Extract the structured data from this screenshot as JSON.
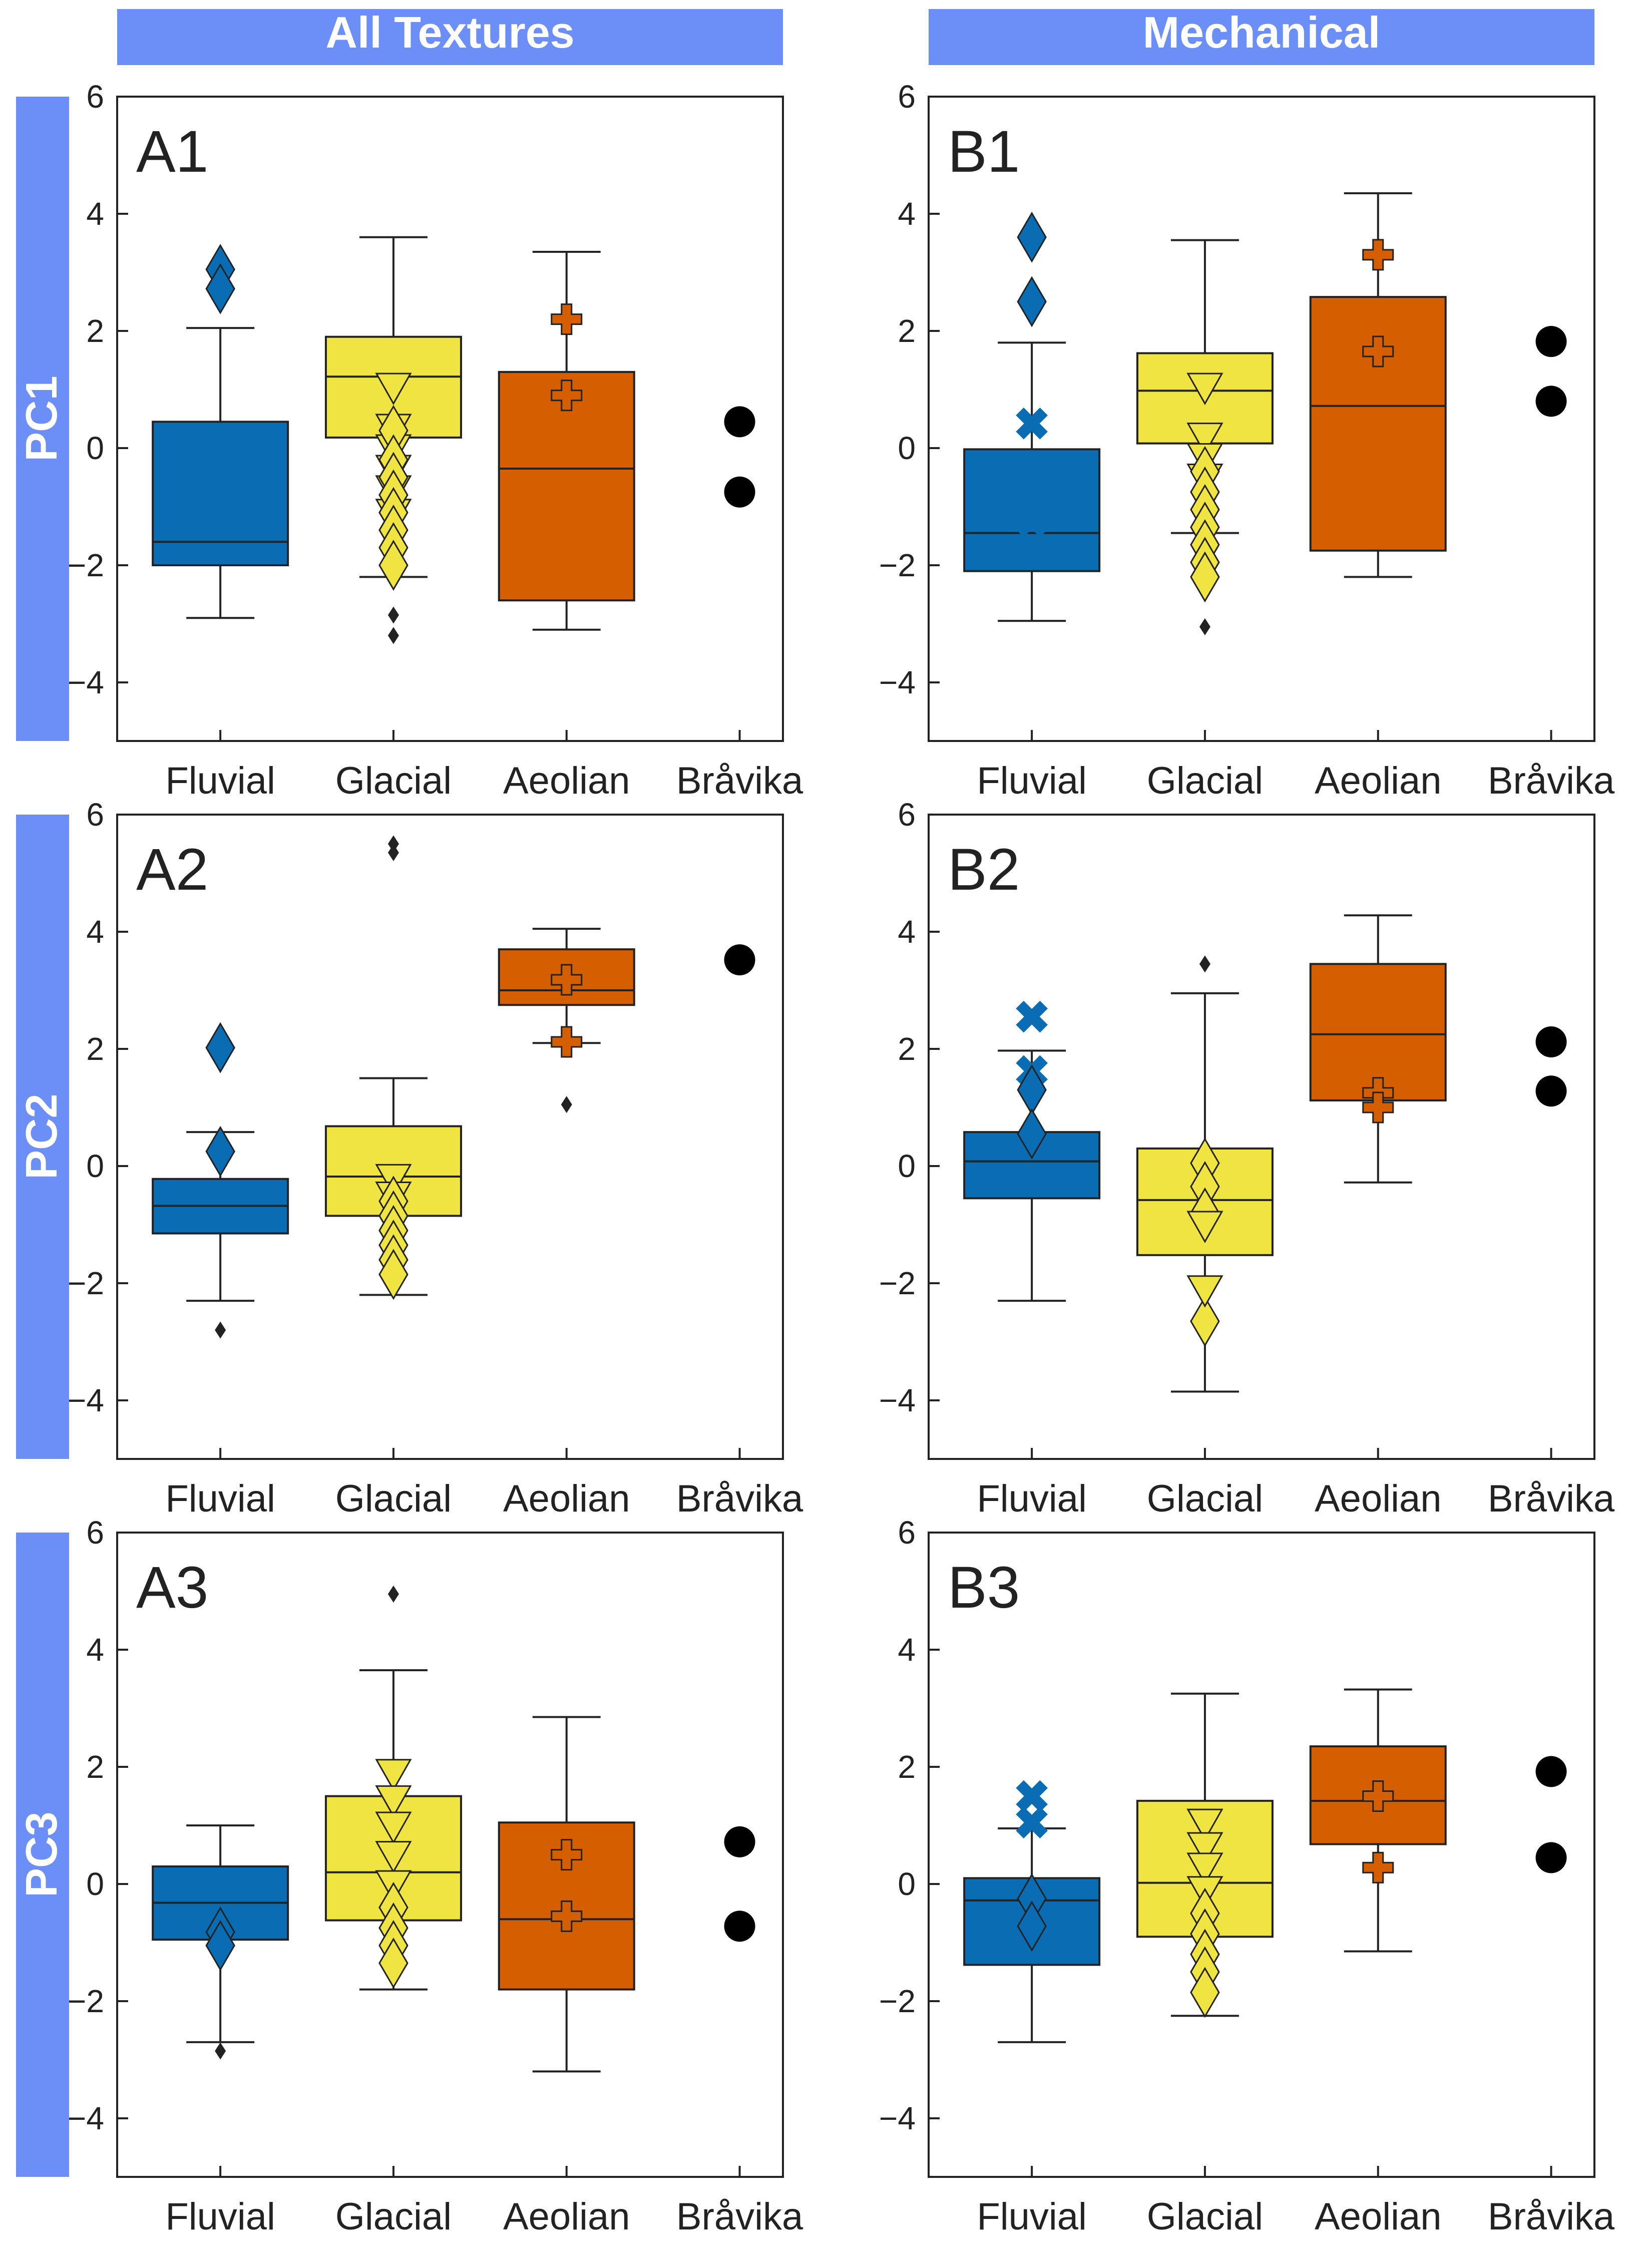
{
  "figure": {
    "column_titles": [
      "All Textures",
      "Mechanical"
    ],
    "row_titles": [
      "PC1",
      "PC2",
      "PC3"
    ],
    "header_color": "#6b8ef7"
  },
  "colors": {
    "Fluvial": "#0a6db3",
    "Glacial": "#f0e442",
    "Aeolian": "#d55e00",
    "Bråvika": "#000000"
  },
  "chart_data": [
    {
      "type": "box",
      "panel": "A1",
      "column": "All Textures",
      "row": "PC1",
      "categories": [
        "Fluvial",
        "Glacial",
        "Aeolian",
        "Bråvika"
      ],
      "ylim": [
        -5,
        6
      ],
      "yticks": [
        -4,
        -2,
        0,
        2,
        4,
        6
      ],
      "boxes": [
        {
          "category": "Fluvial",
          "q1": -2.0,
          "median": -1.6,
          "q3": 0.45,
          "whisker_low": -2.9,
          "whisker_high": 2.05,
          "outliers": []
        },
        {
          "category": "Glacial",
          "q1": 0.18,
          "median": 1.22,
          "q3": 1.9,
          "whisker_low": -2.2,
          "whisker_high": 3.6,
          "outliers": [
            -2.85,
            -3.2
          ]
        },
        {
          "category": "Aeolian",
          "q1": -2.6,
          "median": -0.35,
          "q3": 1.3,
          "whisker_low": -3.1,
          "whisker_high": 3.35,
          "outliers": []
        }
      ],
      "markers": [
        {
          "category": "Fluvial",
          "shape": "diamond",
          "y": [
            3.05,
            2.72
          ]
        },
        {
          "category": "Glacial",
          "shape": "tri-down",
          "y": [
            1.05,
            0.35,
            0.0,
            -0.35,
            -0.7,
            -1.1
          ]
        },
        {
          "category": "Glacial",
          "shape": "diamond",
          "y": [
            0.3,
            -0.2,
            -0.5,
            -0.8,
            -1.1,
            -1.4,
            -1.7,
            -2.0
          ]
        },
        {
          "category": "Aeolian",
          "shape": "plus",
          "y": [
            2.2,
            0.9
          ]
        }
      ],
      "points": [
        {
          "category": "Bråvika",
          "y": [
            0.45,
            -0.75
          ]
        }
      ]
    },
    {
      "type": "box",
      "panel": "B1",
      "column": "Mechanical",
      "row": "PC1",
      "categories": [
        "Fluvial",
        "Glacial",
        "Aeolian",
        "Bråvika"
      ],
      "ylim": [
        -5,
        6
      ],
      "yticks": [
        -4,
        -2,
        0,
        2,
        4,
        6
      ],
      "boxes": [
        {
          "category": "Fluvial",
          "q1": -2.1,
          "median": -1.45,
          "q3": -0.02,
          "whisker_low": -2.95,
          "whisker_high": 1.8,
          "outliers": []
        },
        {
          "category": "Glacial",
          "q1": 0.08,
          "median": 0.98,
          "q3": 1.62,
          "whisker_low": -1.45,
          "whisker_high": 3.55,
          "outliers": [
            -2.35,
            -3.05
          ]
        },
        {
          "category": "Aeolian",
          "q1": -1.75,
          "median": 0.72,
          "q3": 2.58,
          "whisker_low": -2.2,
          "whisker_high": 4.35,
          "outliers": []
        }
      ],
      "markers": [
        {
          "category": "Fluvial",
          "shape": "diamond",
          "y": [
            3.6,
            2.5
          ]
        },
        {
          "category": "Fluvial",
          "shape": "cross",
          "y": [
            0.42,
            -0.72,
            -1.25
          ]
        },
        {
          "category": "Glacial",
          "shape": "tri-down",
          "y": [
            1.05,
            0.2,
            -0.15,
            -0.5
          ]
        },
        {
          "category": "Glacial",
          "shape": "diamond",
          "y": [
            -0.4,
            -0.75,
            -1.05,
            -1.35,
            -1.65,
            -1.95,
            -2.2
          ]
        },
        {
          "category": "Aeolian",
          "shape": "plus",
          "y": [
            3.3,
            1.65
          ]
        }
      ],
      "points": [
        {
          "category": "Bråvika",
          "y": [
            1.82,
            0.8
          ]
        }
      ]
    },
    {
      "type": "box",
      "panel": "A2",
      "column": "All Textures",
      "row": "PC2",
      "categories": [
        "Fluvial",
        "Glacial",
        "Aeolian",
        "Bråvika"
      ],
      "ylim": [
        -5,
        6
      ],
      "yticks": [
        -4,
        -2,
        0,
        2,
        4,
        6
      ],
      "boxes": [
        {
          "category": "Fluvial",
          "q1": -1.15,
          "median": -0.68,
          "q3": -0.22,
          "whisker_low": -2.3,
          "whisker_high": 0.58,
          "outliers": [
            -2.8
          ]
        },
        {
          "category": "Glacial",
          "q1": -0.85,
          "median": -0.18,
          "q3": 0.68,
          "whisker_low": -2.2,
          "whisker_high": 1.5,
          "outliers": [
            5.5,
            5.35
          ]
        },
        {
          "category": "Aeolian",
          "q1": 2.75,
          "median": 3.0,
          "q3": 3.7,
          "whisker_low": 2.1,
          "whisker_high": 4.05,
          "outliers": [
            1.05
          ]
        }
      ],
      "markers": [
        {
          "category": "Fluvial",
          "shape": "diamond",
          "y": [
            2.02,
            0.25
          ]
        },
        {
          "category": "Glacial",
          "shape": "tri-down",
          "y": [
            -0.2,
            -0.5
          ]
        },
        {
          "category": "Glacial",
          "shape": "diamond",
          "y": [
            -0.6,
            -0.85,
            -1.1,
            -1.35,
            -1.6,
            -1.85
          ]
        },
        {
          "category": "Aeolian",
          "shape": "plus",
          "y": [
            3.18,
            2.12
          ]
        }
      ],
      "points": [
        {
          "category": "Bråvika",
          "y": [
            3.52
          ]
        }
      ]
    },
    {
      "type": "box",
      "panel": "B2",
      "column": "Mechanical",
      "row": "PC2",
      "categories": [
        "Fluvial",
        "Glacial",
        "Aeolian",
        "Bråvika"
      ],
      "ylim": [
        -5,
        6
      ],
      "yticks": [
        -4,
        -2,
        0,
        2,
        4,
        6
      ],
      "boxes": [
        {
          "category": "Fluvial",
          "q1": -0.55,
          "median": 0.08,
          "q3": 0.58,
          "whisker_low": -2.3,
          "whisker_high": 1.97,
          "outliers": []
        },
        {
          "category": "Glacial",
          "q1": -1.52,
          "median": -0.58,
          "q3": 0.3,
          "whisker_low": -3.85,
          "whisker_high": 2.95,
          "outliers": [
            3.45
          ]
        },
        {
          "category": "Aeolian",
          "q1": 1.12,
          "median": 2.25,
          "q3": 3.45,
          "whisker_low": -0.28,
          "whisker_high": 4.28,
          "outliers": []
        }
      ],
      "markers": [
        {
          "category": "Fluvial",
          "shape": "cross",
          "y": [
            2.55,
            1.62
          ]
        },
        {
          "category": "Fluvial",
          "shape": "diamond",
          "y": [
            1.3,
            0.55
          ]
        },
        {
          "category": "Glacial",
          "shape": "diamond",
          "y": [
            0.05,
            -0.35,
            -0.8,
            -2.65
          ]
        },
        {
          "category": "Glacial",
          "shape": "tri-down",
          "y": [
            -1.0,
            -2.1
          ]
        },
        {
          "category": "Aeolian",
          "shape": "plus",
          "y": [
            1.25,
            1.0
          ]
        }
      ],
      "points": [
        {
          "category": "Bråvika",
          "y": [
            2.12,
            1.28
          ]
        }
      ]
    },
    {
      "type": "box",
      "panel": "A3",
      "column": "All Textures",
      "row": "PC3",
      "categories": [
        "Fluvial",
        "Glacial",
        "Aeolian",
        "Bråvika"
      ],
      "ylim": [
        -5,
        6
      ],
      "yticks": [
        -4,
        -2,
        0,
        2,
        4,
        6
      ],
      "boxes": [
        {
          "category": "Fluvial",
          "q1": -0.95,
          "median": -0.32,
          "q3": 0.3,
          "whisker_low": -2.7,
          "whisker_high": 1.0,
          "outliers": [
            -2.85
          ]
        },
        {
          "category": "Glacial",
          "q1": -0.62,
          "median": 0.2,
          "q3": 1.5,
          "whisker_low": -1.8,
          "whisker_high": 3.65,
          "outliers": [
            4.95
          ]
        },
        {
          "category": "Aeolian",
          "q1": -1.8,
          "median": -0.6,
          "q3": 1.05,
          "whisker_low": -3.2,
          "whisker_high": 2.85,
          "outliers": []
        }
      ],
      "markers": [
        {
          "category": "Fluvial",
          "shape": "diamond",
          "y": [
            -0.82,
            -1.05
          ]
        },
        {
          "category": "Glacial",
          "shape": "tri-down",
          "y": [
            1.9,
            1.45,
            1.0,
            0.5,
            0.0
          ]
        },
        {
          "category": "Glacial",
          "shape": "diamond",
          "y": [
            -0.4,
            -0.75,
            -1.05,
            -1.35
          ]
        },
        {
          "category": "Aeolian",
          "shape": "plus",
          "y": [
            0.5,
            -0.55
          ]
        }
      ],
      "points": [
        {
          "category": "Bråvika",
          "y": [
            0.72,
            -0.72
          ]
        }
      ]
    },
    {
      "type": "box",
      "panel": "B3",
      "column": "Mechanical",
      "row": "PC3",
      "categories": [
        "Fluvial",
        "Glacial",
        "Aeolian",
        "Bråvika"
      ],
      "ylim": [
        -5,
        6
      ],
      "yticks": [
        -4,
        -2,
        0,
        2,
        4,
        6
      ],
      "boxes": [
        {
          "category": "Fluvial",
          "q1": -1.38,
          "median": -0.28,
          "q3": 0.1,
          "whisker_low": -2.7,
          "whisker_high": 0.95,
          "outliers": []
        },
        {
          "category": "Glacial",
          "q1": -0.9,
          "median": 0.02,
          "q3": 1.42,
          "whisker_low": -2.25,
          "whisker_high": 3.25,
          "outliers": []
        },
        {
          "category": "Aeolian",
          "q1": 0.68,
          "median": 1.42,
          "q3": 2.35,
          "whisker_low": -1.15,
          "whisker_high": 3.32,
          "outliers": []
        }
      ],
      "markers": [
        {
          "category": "Fluvial",
          "shape": "cross",
          "y": [
            1.5,
            1.05
          ]
        },
        {
          "category": "Fluvial",
          "shape": "diamond",
          "y": [
            -0.25,
            -0.72
          ]
        },
        {
          "category": "Glacial",
          "shape": "tri-down",
          "y": [
            1.05,
            0.65,
            0.3,
            -0.1
          ]
        },
        {
          "category": "Glacial",
          "shape": "diamond",
          "y": [
            -0.5,
            -0.85,
            -1.2,
            -1.5,
            -1.85
          ]
        },
        {
          "category": "Aeolian",
          "shape": "plus",
          "y": [
            1.5,
            0.28
          ]
        }
      ],
      "points": [
        {
          "category": "Bråvika",
          "y": [
            1.92,
            0.45
          ]
        }
      ]
    }
  ]
}
